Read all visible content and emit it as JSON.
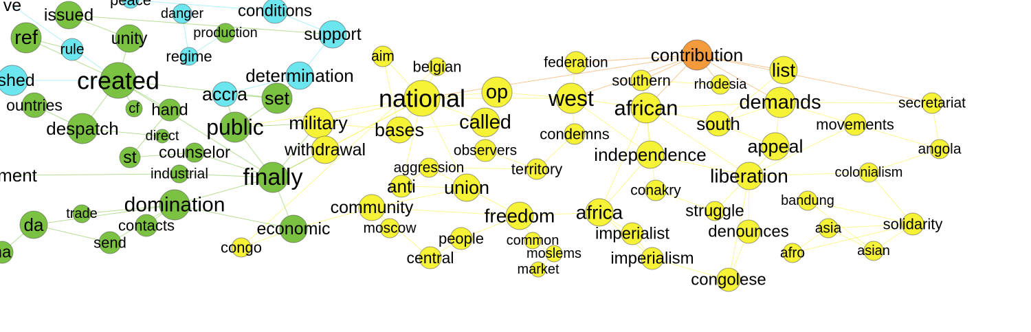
{
  "graph": {
    "colors": {
      "cyan": "#6be6ee",
      "green": "#7cc242",
      "yellow": "#f6f235",
      "orange": "#f39a3c"
    },
    "nodes": [
      {
        "id": "ve",
        "label": "ve",
        "color": "cyan"
      },
      {
        "id": "peace",
        "label": "peace",
        "color": "cyan"
      },
      {
        "id": "issued",
        "label": "issued",
        "color": "green"
      },
      {
        "id": "danger",
        "label": "danger",
        "color": "cyan"
      },
      {
        "id": "conditions",
        "label": "conditions",
        "color": "cyan"
      },
      {
        "id": "ref",
        "label": "ref",
        "color": "green"
      },
      {
        "id": "rule",
        "label": "rule",
        "color": "cyan"
      },
      {
        "id": "unity",
        "label": "unity",
        "color": "green"
      },
      {
        "id": "production",
        "label": "production",
        "color": "green"
      },
      {
        "id": "support",
        "label": "support",
        "color": "cyan"
      },
      {
        "id": "regime",
        "label": "regime",
        "color": "cyan"
      },
      {
        "id": "lished",
        "label": "lished",
        "color": "cyan"
      },
      {
        "id": "created",
        "label": "created",
        "color": "green"
      },
      {
        "id": "determination",
        "label": "determination",
        "color": "cyan"
      },
      {
        "id": "ountries",
        "label": "ountries",
        "color": "green"
      },
      {
        "id": "accra",
        "label": "accra",
        "color": "cyan"
      },
      {
        "id": "set",
        "label": "set",
        "color": "green"
      },
      {
        "id": "cf",
        "label": "cf",
        "color": "green"
      },
      {
        "id": "hand",
        "label": "hand",
        "color": "green"
      },
      {
        "id": "despatch",
        "label": "despatch",
        "color": "green"
      },
      {
        "id": "direct",
        "label": "direct",
        "color": "green"
      },
      {
        "id": "public",
        "label": "public",
        "color": "green"
      },
      {
        "id": "military",
        "label": "military",
        "color": "yellow"
      },
      {
        "id": "st",
        "label": "st",
        "color": "green"
      },
      {
        "id": "counselor",
        "label": "counselor",
        "color": "green"
      },
      {
        "id": "withdrawal",
        "label": "withdrawal",
        "color": "yellow"
      },
      {
        "id": "ment",
        "label": "ment",
        "color": "green"
      },
      {
        "id": "industrial",
        "label": "industrial",
        "color": "green"
      },
      {
        "id": "finally",
        "label": "finally",
        "color": "green"
      },
      {
        "id": "domination",
        "label": "domination",
        "color": "green"
      },
      {
        "id": "trade",
        "label": "trade",
        "color": "green"
      },
      {
        "id": "da",
        "label": "da",
        "color": "green"
      },
      {
        "id": "contacts",
        "label": "contacts",
        "color": "green"
      },
      {
        "id": "economic",
        "label": "economic",
        "color": "green"
      },
      {
        "id": "send",
        "label": "send",
        "color": "green"
      },
      {
        "id": "congo",
        "label": "congo",
        "color": "yellow"
      },
      {
        "id": "na",
        "label": "na",
        "color": "green"
      },
      {
        "id": "aim",
        "label": "aim",
        "color": "yellow"
      },
      {
        "id": "belgian",
        "label": "belgian",
        "color": "yellow"
      },
      {
        "id": "national",
        "label": "national",
        "color": "yellow"
      },
      {
        "id": "op",
        "label": "op",
        "color": "yellow"
      },
      {
        "id": "bases",
        "label": "bases",
        "color": "yellow"
      },
      {
        "id": "called",
        "label": "called",
        "color": "yellow"
      },
      {
        "id": "observers",
        "label": "observers",
        "color": "yellow"
      },
      {
        "id": "aggression",
        "label": "aggression",
        "color": "yellow"
      },
      {
        "id": "anti",
        "label": "anti",
        "color": "yellow"
      },
      {
        "id": "union",
        "label": "union",
        "color": "yellow"
      },
      {
        "id": "community",
        "label": "community",
        "color": "yellow"
      },
      {
        "id": "moscow",
        "label": "moscow",
        "color": "yellow"
      },
      {
        "id": "people",
        "label": "people",
        "color": "yellow"
      },
      {
        "id": "central",
        "label": "central",
        "color": "yellow"
      },
      {
        "id": "federation",
        "label": "federation",
        "color": "yellow"
      },
      {
        "id": "west",
        "label": "west",
        "color": "yellow"
      },
      {
        "id": "condemns",
        "label": "condemns",
        "color": "yellow"
      },
      {
        "id": "territory",
        "label": "territory",
        "color": "yellow"
      },
      {
        "id": "freedom",
        "label": "freedom",
        "color": "yellow"
      },
      {
        "id": "common",
        "label": "common",
        "color": "yellow"
      },
      {
        "id": "moslems",
        "label": "moslems",
        "color": "yellow"
      },
      {
        "id": "market",
        "label": "market",
        "color": "yellow"
      },
      {
        "id": "contribution",
        "label": "contribution",
        "color": "orange"
      },
      {
        "id": "southern",
        "label": "southern",
        "color": "yellow"
      },
      {
        "id": "rhodesia",
        "label": "rhodesia",
        "color": "yellow"
      },
      {
        "id": "african",
        "label": "african",
        "color": "yellow"
      },
      {
        "id": "independence",
        "label": "independence",
        "color": "yellow"
      },
      {
        "id": "conakry",
        "label": "conakry",
        "color": "yellow"
      },
      {
        "id": "africa",
        "label": "africa",
        "color": "yellow"
      },
      {
        "id": "imperialist",
        "label": "imperialist",
        "color": "yellow"
      },
      {
        "id": "imperialism",
        "label": "imperialism",
        "color": "yellow"
      },
      {
        "id": "list",
        "label": "list",
        "color": "yellow"
      },
      {
        "id": "demands",
        "label": "demands",
        "color": "yellow"
      },
      {
        "id": "south",
        "label": "south",
        "color": "yellow"
      },
      {
        "id": "appeal",
        "label": "appeal",
        "color": "yellow"
      },
      {
        "id": "liberation",
        "label": "liberation",
        "color": "yellow"
      },
      {
        "id": "struggle",
        "label": "struggle",
        "color": "yellow"
      },
      {
        "id": "denounces",
        "label": "denounces",
        "color": "yellow"
      },
      {
        "id": "congolese",
        "label": "congolese",
        "color": "yellow"
      },
      {
        "id": "secretariat",
        "label": "secretariat",
        "color": "yellow"
      },
      {
        "id": "movements",
        "label": "movements",
        "color": "yellow"
      },
      {
        "id": "angola",
        "label": "angola",
        "color": "yellow"
      },
      {
        "id": "colonialism",
        "label": "colonialism",
        "color": "yellow"
      },
      {
        "id": "bandung",
        "label": "bandung",
        "color": "yellow"
      },
      {
        "id": "asia",
        "label": "asia",
        "color": "yellow"
      },
      {
        "id": "afro",
        "label": "afro",
        "color": "yellow"
      },
      {
        "id": "solidarity",
        "label": "solidarity",
        "color": "yellow"
      },
      {
        "id": "asian",
        "label": "asian",
        "color": "yellow"
      }
    ],
    "edges": [
      [
        "contribution",
        "list"
      ],
      [
        "contribution",
        "african"
      ],
      [
        "contribution",
        "rhodesia"
      ],
      [
        "contribution",
        "federation"
      ],
      [
        "contribution",
        "southern"
      ],
      [
        "contribution",
        "demands"
      ],
      [
        "contribution",
        "west"
      ],
      [
        "contribution",
        "national"
      ],
      [
        "contribution",
        "secretariat"
      ],
      [
        "national",
        "op"
      ],
      [
        "national",
        "bases"
      ],
      [
        "national",
        "called"
      ],
      [
        "national",
        "aim"
      ],
      [
        "national",
        "belgian"
      ],
      [
        "national",
        "west"
      ],
      [
        "national",
        "military"
      ],
      [
        "national",
        "union"
      ],
      [
        "national",
        "anti"
      ],
      [
        "national",
        "finally"
      ],
      [
        "national",
        "withdrawal"
      ],
      [
        "national",
        "public"
      ],
      [
        "west",
        "african"
      ],
      [
        "west",
        "condemns"
      ],
      [
        "west",
        "federation"
      ],
      [
        "west",
        "independence"
      ],
      [
        "west",
        "op"
      ],
      [
        "african",
        "independence"
      ],
      [
        "african",
        "southern"
      ],
      [
        "african",
        "south"
      ],
      [
        "african",
        "demands"
      ],
      [
        "african",
        "liberation"
      ],
      [
        "african",
        "africa"
      ],
      [
        "african",
        "conakry"
      ],
      [
        "demands",
        "list"
      ],
      [
        "demands",
        "appeal"
      ],
      [
        "demands",
        "south"
      ],
      [
        "demands",
        "secretariat"
      ],
      [
        "demands",
        "movements"
      ],
      [
        "liberation",
        "appeal"
      ],
      [
        "liberation",
        "struggle"
      ],
      [
        "liberation",
        "colonialism"
      ],
      [
        "liberation",
        "denounces"
      ],
      [
        "liberation",
        "independence"
      ],
      [
        "liberation",
        "movements"
      ],
      [
        "liberation",
        "congolese"
      ],
      [
        "solidarity",
        "asia"
      ],
      [
        "solidarity",
        "afro"
      ],
      [
        "solidarity",
        "asian"
      ],
      [
        "solidarity",
        "bandung"
      ],
      [
        "solidarity",
        "colonialism"
      ],
      [
        "asia",
        "afro"
      ],
      [
        "asia",
        "asian"
      ],
      [
        "bandung",
        "asian"
      ],
      [
        "angola",
        "colonialism"
      ],
      [
        "angola",
        "secretariat"
      ],
      [
        "angola",
        "movements"
      ],
      [
        "africa",
        "freedom"
      ],
      [
        "africa",
        "imperialist"
      ],
      [
        "africa",
        "imperialism"
      ],
      [
        "africa",
        "independence"
      ],
      [
        "freedom",
        "union"
      ],
      [
        "freedom",
        "people"
      ],
      [
        "freedom",
        "common"
      ],
      [
        "freedom",
        "community"
      ],
      [
        "common",
        "moslems"
      ],
      [
        "moslems",
        "market"
      ],
      [
        "imperialist",
        "imperialism"
      ],
      [
        "imperialism",
        "congolese"
      ],
      [
        "congolese",
        "denounces"
      ],
      [
        "union",
        "anti"
      ],
      [
        "union",
        "aggression"
      ],
      [
        "union",
        "community"
      ],
      [
        "anti",
        "aggression"
      ],
      [
        "community",
        "moscow"
      ],
      [
        "community",
        "economic"
      ],
      [
        "central",
        "people"
      ],
      [
        "central",
        "community"
      ],
      [
        "territory",
        "condemns"
      ],
      [
        "territory",
        "aggression"
      ],
      [
        "observers",
        "called"
      ],
      [
        "observers",
        "territory"
      ],
      [
        "finally",
        "domination"
      ],
      [
        "finally",
        "public"
      ],
      [
        "finally",
        "created"
      ],
      [
        "finally",
        "economic"
      ],
      [
        "finally",
        "industrial"
      ],
      [
        "finally",
        "counselor"
      ],
      [
        "finally",
        "military"
      ],
      [
        "finally",
        "withdrawal"
      ],
      [
        "domination",
        "economic"
      ],
      [
        "domination",
        "contacts"
      ],
      [
        "domination",
        "trade"
      ],
      [
        "domination",
        "send"
      ],
      [
        "domination",
        "da"
      ],
      [
        "created",
        "ref"
      ],
      [
        "created",
        "unity"
      ],
      [
        "created",
        "hand"
      ],
      [
        "created",
        "despatch"
      ],
      [
        "created",
        "cf"
      ],
      [
        "created",
        "set"
      ],
      [
        "public",
        "set"
      ],
      [
        "public",
        "military"
      ],
      [
        "public",
        "accra"
      ],
      [
        "set",
        "accra"
      ],
      [
        "set",
        "determination"
      ],
      [
        "accra",
        "determination"
      ],
      [
        "determination",
        "support"
      ],
      [
        "support",
        "conditions"
      ],
      [
        "regime",
        "production"
      ],
      [
        "unity",
        "issued"
      ],
      [
        "ref",
        "rule"
      ],
      [
        "despatch",
        "direct"
      ],
      [
        "st",
        "counselor"
      ],
      [
        "st",
        "hand"
      ],
      [
        "ment",
        "industrial"
      ],
      [
        "da",
        "send"
      ],
      [
        "congo",
        "economic"
      ],
      [
        "congo",
        "belgian"
      ],
      [
        "military",
        "bases"
      ],
      [
        "military",
        "withdrawal"
      ],
      [
        "aim",
        "bases"
      ],
      [
        "ve",
        "created"
      ],
      [
        "peace",
        "conditions"
      ],
      [
        "danger",
        "regime"
      ],
      [
        "lished",
        "created"
      ],
      [
        "ountries",
        "despatch"
      ],
      [
        "issued",
        "support"
      ],
      [
        "na",
        "da"
      ],
      [
        "south",
        "appeal"
      ],
      [
        "conakry",
        "struggle"
      ],
      [
        "rhodesia",
        "southern"
      ],
      [
        "list",
        "south"
      ],
      [
        "bases",
        "called"
      ]
    ]
  }
}
